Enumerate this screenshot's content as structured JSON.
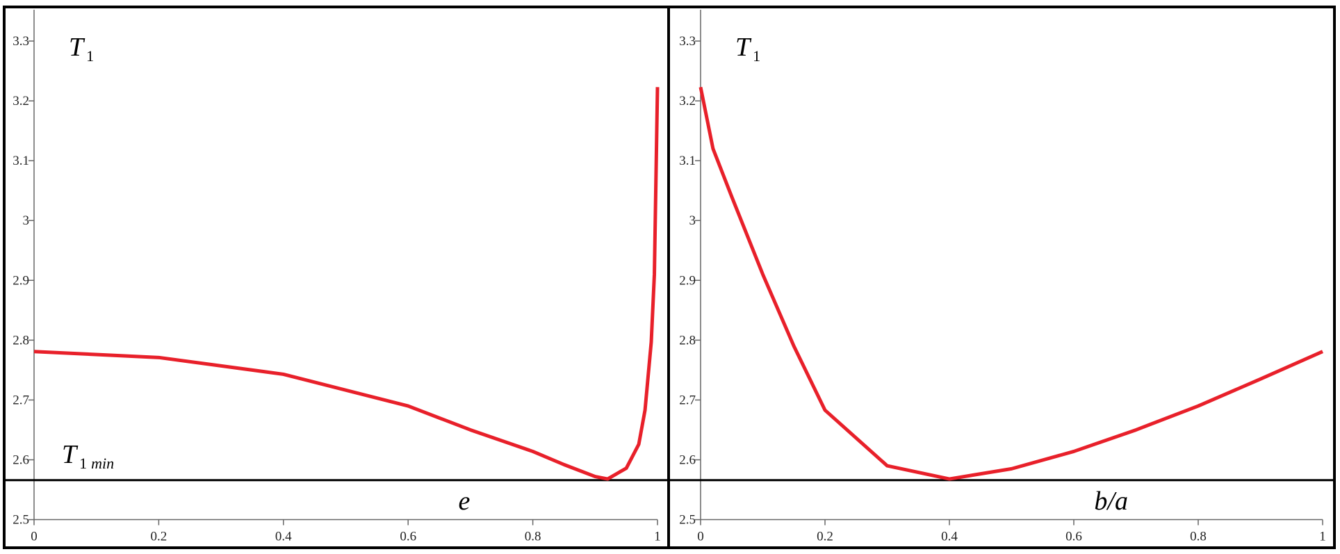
{
  "chart_data": [
    {
      "type": "line",
      "y_label": {
        "main": "T",
        "sub": "1"
      },
      "annotation": {
        "main": "T",
        "sub": "1",
        "sub_italic": "min"
      },
      "x_label": "e",
      "x": [
        0,
        0.2,
        0.4,
        0.6,
        0.7,
        0.8,
        0.85,
        0.9,
        0.92,
        0.95,
        0.97,
        0.98,
        0.99,
        0.995,
        1.0
      ],
      "series": [
        {
          "name": "T1",
          "color": "#e8202a",
          "values": [
            2.781,
            2.771,
            2.743,
            2.69,
            2.65,
            2.614,
            2.592,
            2.572,
            2.568,
            2.586,
            2.626,
            2.683,
            2.797,
            2.91,
            3.223
          ]
        }
      ],
      "reference_line": 2.566,
      "xlim": [
        0,
        1
      ],
      "ylim": [
        2.453,
        3.357
      ],
      "xticks": [
        0,
        0.2,
        0.4,
        0.6,
        0.8,
        1
      ],
      "yticks": [
        2.5,
        2.6,
        2.7,
        2.8,
        2.9,
        3,
        3.1,
        3.2,
        3.3
      ]
    },
    {
      "type": "line",
      "y_label": {
        "main": "T",
        "sub": "1"
      },
      "x_label": "b/a",
      "x": [
        0,
        0.02,
        0.05,
        0.1,
        0.15,
        0.2,
        0.3,
        0.4,
        0.5,
        0.6,
        0.7,
        0.8,
        0.9,
        1.0
      ],
      "series": [
        {
          "name": "T1",
          "color": "#e8202a",
          "values": [
            3.223,
            3.12,
            3.04,
            2.91,
            2.79,
            2.683,
            2.59,
            2.568,
            2.585,
            2.614,
            2.65,
            2.69,
            2.735,
            2.781
          ]
        }
      ],
      "reference_line": 2.566,
      "xlim": [
        0,
        1
      ],
      "ylim": [
        2.453,
        3.357
      ],
      "xticks": [
        0,
        0.2,
        0.4,
        0.6,
        0.8,
        1
      ],
      "yticks": [
        2.5,
        2.6,
        2.7,
        2.8,
        2.9,
        3,
        3.1,
        3.2,
        3.3
      ]
    }
  ]
}
